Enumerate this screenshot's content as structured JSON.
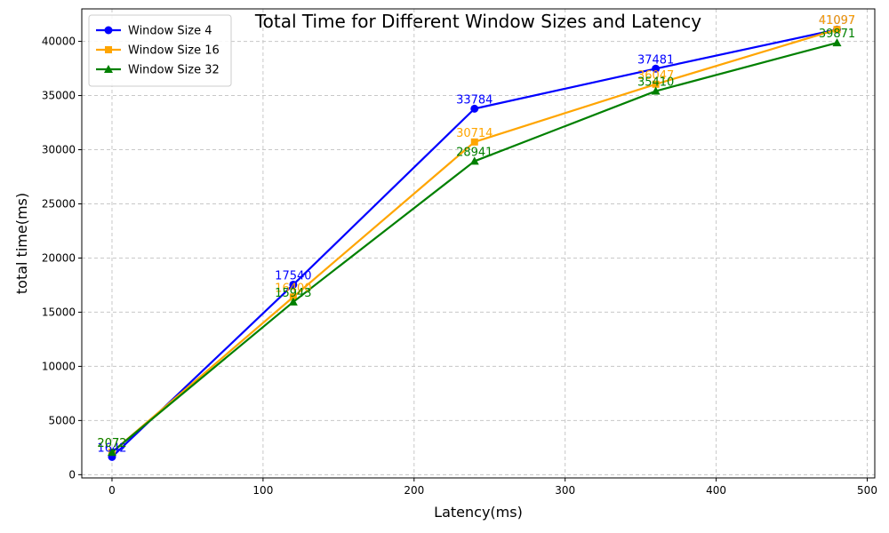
{
  "chart_data": {
    "type": "line",
    "title": "Total Time for Different Window Sizes and Latency",
    "xlabel": "Latency(ms)",
    "ylabel": "total time(ms)",
    "x": [
      0,
      120,
      240,
      360,
      480
    ],
    "xlim": [
      -20,
      505
    ],
    "ylim": [
      -300,
      43000
    ],
    "xticks": [
      0,
      100,
      200,
      300,
      400,
      500
    ],
    "yticks": [
      0,
      5000,
      10000,
      15000,
      20000,
      25000,
      30000,
      35000,
      40000
    ],
    "grid": true,
    "legend_position": "top-left",
    "series": [
      {
        "name": "Window Size 4",
        "color": "#0000ff",
        "marker": "circle",
        "values": [
          1642,
          17540,
          33784,
          37481,
          41097
        ]
      },
      {
        "name": "Window Size 16",
        "color": "#ffa500",
        "marker": "square",
        "values": [
          2072,
          16400,
          30714,
          36047,
          41097
        ]
      },
      {
        "name": "Window Size 32",
        "color": "#008000",
        "marker": "triangle",
        "values": [
          2072,
          15943,
          28941,
          35410,
          39871
        ]
      }
    ]
  }
}
